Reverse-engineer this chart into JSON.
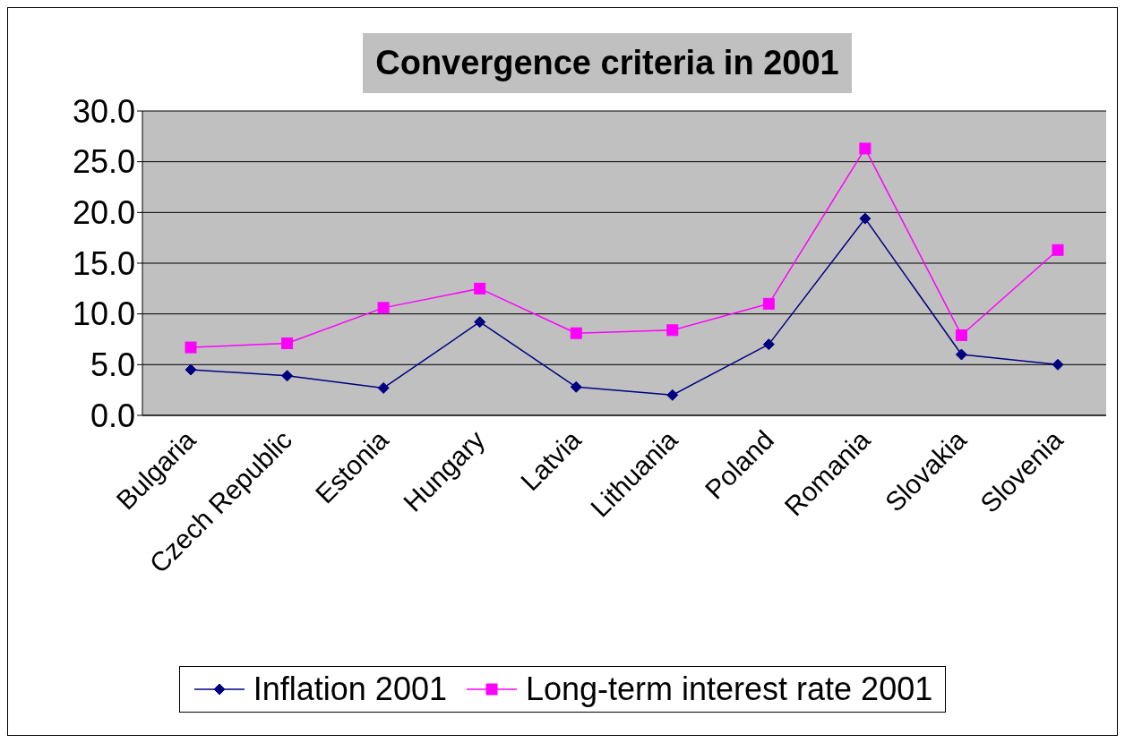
{
  "chart_data": {
    "type": "line",
    "title": "Convergence criteria in 2001",
    "categories": [
      "Bulgaria",
      "Czech Republic",
      "Estonia",
      "Hungary",
      "Latvia",
      "Lithuania",
      "Poland",
      "Romania",
      "Slovakia",
      "Slovenia"
    ],
    "series": [
      {
        "name": "Inflation 2001",
        "color": "#000080",
        "marker": "diamond",
        "values": [
          4.5,
          3.9,
          2.7,
          9.2,
          2.8,
          2.0,
          7.0,
          19.4,
          6.0,
          5.0
        ]
      },
      {
        "name": "Long-term interest rate 2001",
        "color": "#ff00ff",
        "marker": "square",
        "values": [
          6.7,
          7.1,
          10.6,
          12.5,
          8.1,
          8.4,
          11.0,
          26.3,
          7.9,
          16.3
        ]
      }
    ],
    "ylim": [
      0,
      30
    ],
    "yticks": [
      {
        "value": 0,
        "label": "0.0"
      },
      {
        "value": 5,
        "label": "5.0"
      },
      {
        "value": 10,
        "label": "10.0"
      },
      {
        "value": 15,
        "label": "15.0"
      },
      {
        "value": 20,
        "label": "20.0"
      },
      {
        "value": 25,
        "label": "25.0"
      },
      {
        "value": 30,
        "label": "30.0"
      }
    ],
    "grid": "y",
    "legend": "bottom",
    "line_style": "solid"
  }
}
